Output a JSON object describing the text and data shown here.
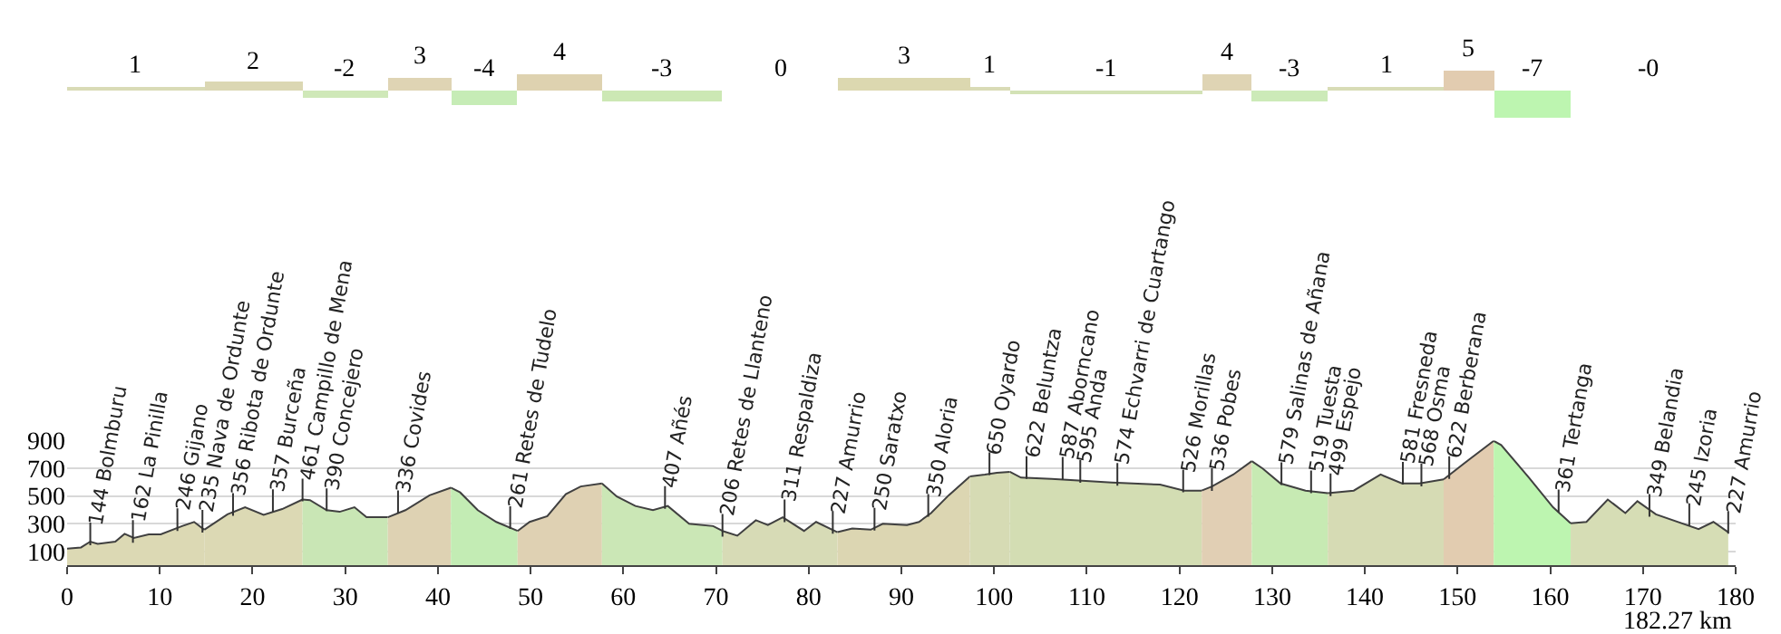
{
  "chart_data": [
    {
      "type": "bar",
      "tick_labels": false,
      "xlim": [
        0,
        180
      ],
      "x": [
        7.4,
        20.1,
        30,
        38,
        45,
        53.15,
        64.2,
        76.9,
        90.25,
        99.55,
        112.05,
        125.1,
        131.9,
        142.25,
        151.2,
        158.05,
        170.7
      ],
      "values": [
        1,
        2,
        -2,
        3,
        -4,
        4,
        -3,
        0,
        3,
        1,
        -1,
        4,
        -3,
        1,
        5,
        -7,
        0
      ],
      "value_labels": [
        "1",
        "2",
        "-2",
        "3",
        "-4",
        "4",
        "-3",
        "0",
        "3",
        "1",
        "-1",
        "4",
        "-3",
        "1",
        "5",
        "-7",
        "-0"
      ],
      "colors": [
        "#d9dbb6",
        "#dbd7b3",
        "#cfe8b8",
        "#dfd4b4",
        "#c6ecb6",
        "#ded2b0",
        "#cce8b4",
        "#d8dcb8",
        "#dcd8b0",
        "#d9dbb6",
        "#d3e2b6",
        "#dfd4b4",
        "#cceab8",
        "#d8dcb6",
        "#e2ccb0",
        "#bdf5b0",
        "#d5ddb5"
      ]
    },
    {
      "type": "area",
      "xlim": [
        0,
        180
      ],
      "ylim": [
        0,
        900
      ],
      "grid": "y",
      "xticks": [
        0,
        10,
        20,
        30,
        40,
        50,
        60,
        70,
        80,
        90,
        100,
        110,
        120,
        130,
        140,
        150,
        160,
        170,
        180
      ],
      "yticks": [
        100,
        300,
        500,
        700,
        900
      ],
      "series": [
        {
          "color": "#dcd9b4",
          "x": [
            0,
            1.5,
            2.5,
            3.3,
            5.2,
            6.2,
            7.2,
            8.8,
            10.1,
            12.4,
            13.7,
            14.8
          ],
          "values": [
            120,
            128,
            170,
            154,
            170,
            226,
            196,
            222,
            222,
            282,
            312,
            256
          ]
        },
        {
          "color": "#dcd9b4",
          "x": [
            14.8,
            17.3,
            19.2,
            21.2,
            23.2,
            25.4
          ],
          "values": [
            256,
            367,
            418,
            363,
            405,
            474
          ]
        },
        {
          "color": "#c9e6b5",
          "x": [
            25.4,
            26.2,
            28,
            29.4,
            31,
            32.3,
            34.6
          ],
          "values": [
            474,
            469,
            397,
            385,
            418,
            346,
            346
          ]
        },
        {
          "color": "#ded2b3",
          "x": [
            34.6,
            36.5,
            39.1,
            41.4
          ],
          "values": [
            346,
            397,
            504,
            559
          ]
        },
        {
          "color": "#c3ecb4",
          "x": [
            41.4,
            42.4,
            44.3,
            46.3,
            48.6
          ],
          "values": [
            559,
            525,
            397,
            312,
            247
          ]
        },
        {
          "color": "#dfd1b3",
          "x": [
            48.6,
            49.9,
            51.8,
            53.8,
            55.4,
            57.7
          ],
          "values": [
            247,
            312,
            354,
            513,
            568,
            590
          ]
        },
        {
          "color": "#cbe7b6",
          "x": [
            57.7,
            59.3,
            61.3,
            63.2,
            64.8,
            67.1,
            69.7,
            70.7
          ],
          "values": [
            590,
            495,
            427,
            397,
            427,
            299,
            282,
            247
          ]
        },
        {
          "color": "#d7dbb6",
          "x": [
            70.7,
            72.3,
            74.3,
            75.6,
            77.2,
            79.5,
            80.8,
            83.1
          ],
          "values": [
            247,
            213,
            324,
            290,
            346,
            247,
            312,
            238
          ]
        },
        {
          "color": "#dcd6b2",
          "x": [
            83.1,
            84.7,
            86.7,
            88,
            90.6,
            91.9,
            93.2,
            95.1,
            97.4
          ],
          "values": [
            238,
            264,
            256,
            299,
            290,
            312,
            376,
            504,
            641
          ]
        },
        {
          "color": "#d6dbb4",
          "x": [
            97.4,
            99,
            100.3,
            101.7
          ],
          "values": [
            641,
            654,
            667,
            674
          ]
        },
        {
          "color": "#d3ddb3",
          "x": [
            101.7,
            102.9,
            106.2,
            109.5,
            112.7,
            117.9,
            120.5,
            122.4
          ],
          "values": [
            674,
            632,
            623,
            610,
            597,
            581,
            538,
            538
          ]
        },
        {
          "color": "#e1cfb4",
          "x": [
            122.4,
            123.5,
            125.8,
            127.8
          ],
          "values": [
            538,
            568,
            654,
            751
          ]
        },
        {
          "color": "#c7eab3",
          "x": [
            127.8,
            129,
            130.9,
            133.6,
            136
          ],
          "values": [
            751,
            696,
            590,
            538,
            520
          ]
        },
        {
          "color": "#d6dbb4",
          "x": [
            136,
            138.8,
            141.7,
            144,
            145.9,
            148.5
          ],
          "values": [
            520,
            538,
            654,
            590,
            590,
            619
          ]
        },
        {
          "color": "#e2ccb0",
          "x": [
            148.5,
            151.2,
            153.9
          ],
          "values": [
            619,
            760,
            897
          ]
        },
        {
          "color": "#bdf5b0",
          "x": [
            153.9,
            154.7,
            157.7,
            160.3,
            162.2
          ],
          "values": [
            897,
            867,
            632,
            418,
            303
          ]
        },
        {
          "color": "#d6ddb5",
          "x": [
            162.2,
            163.9,
            166.2,
            168.1,
            169.4,
            171.4,
            176,
            177.6,
            179.2
          ],
          "values": [
            303,
            312,
            474,
            376,
            462,
            367,
            260,
            312,
            238
          ]
        }
      ],
      "annotations": [
        {
          "text": "144 Bolmburu",
          "x": 2.5,
          "y": 144
        },
        {
          "text": "162 La Pinilla",
          "x": 7.1,
          "y": 162
        },
        {
          "text": "246 Gijano",
          "x": 11.9,
          "y": 246
        },
        {
          "text": "235 Nava de Ordunte",
          "x": 14.6,
          "y": 235
        },
        {
          "text": "356 Ribota de Ordunte",
          "x": 17.9,
          "y": 356
        },
        {
          "text": "357 Burceña",
          "x": 22.2,
          "y": 384
        },
        {
          "text": "461 Campillo de Mena",
          "x": 25.4,
          "y": 461
        },
        {
          "text": "390 Concejero",
          "x": 28,
          "y": 390
        },
        {
          "text": "336 Covides",
          "x": 35.7,
          "y": 376
        },
        {
          "text": "261 Retes de Tudelo",
          "x": 47.8,
          "y": 261
        },
        {
          "text": "407 Añés",
          "x": 64.5,
          "y": 407
        },
        {
          "text": "206 Retes de Llanteno",
          "x": 70.7,
          "y": 206
        },
        {
          "text": "311 Respaldiza",
          "x": 77.4,
          "y": 311
        },
        {
          "text": "227 Amurrio",
          "x": 82.6,
          "y": 227
        },
        {
          "text": "250 Saratxo",
          "x": 87.1,
          "y": 250
        },
        {
          "text": "350 Aloria",
          "x": 92.9,
          "y": 350
        },
        {
          "text": "650 Oyardo",
          "x": 99.5,
          "y": 650
        },
        {
          "text": "622 Beluntza",
          "x": 103.5,
          "y": 622
        },
        {
          "text": "587 Aborncano",
          "x": 107.4,
          "y": 618
        },
        {
          "text": "595 Anda",
          "x": 109.3,
          "y": 595
        },
        {
          "text": "574 Echvarri de Cuartango",
          "x": 113.3,
          "y": 574
        },
        {
          "text": "526 Morillas",
          "x": 120.4,
          "y": 526
        },
        {
          "text": "536 Pobes",
          "x": 123.5,
          "y": 536
        },
        {
          "text": "579 Salinas de Añana",
          "x": 131,
          "y": 579
        },
        {
          "text": "519 Tuesta",
          "x": 134.2,
          "y": 519
        },
        {
          "text": "499 Espejo",
          "x": 136.3,
          "y": 499
        },
        {
          "text": "581 Fresneda",
          "x": 144.1,
          "y": 581
        },
        {
          "text": "568 Osma",
          "x": 146.1,
          "y": 568
        },
        {
          "text": "622 Berberana",
          "x": 149.1,
          "y": 622
        },
        {
          "text": "361 Tertanga",
          "x": 160.9,
          "y": 382
        },
        {
          "text": "349 Belandia",
          "x": 170.7,
          "y": 349
        },
        {
          "text": "245 Izoria",
          "x": 175,
          "y": 283
        },
        {
          "text": "227 Amurrio",
          "x": 179.2,
          "y": 227
        },
        "182.27 km"
      ]
    }
  ]
}
